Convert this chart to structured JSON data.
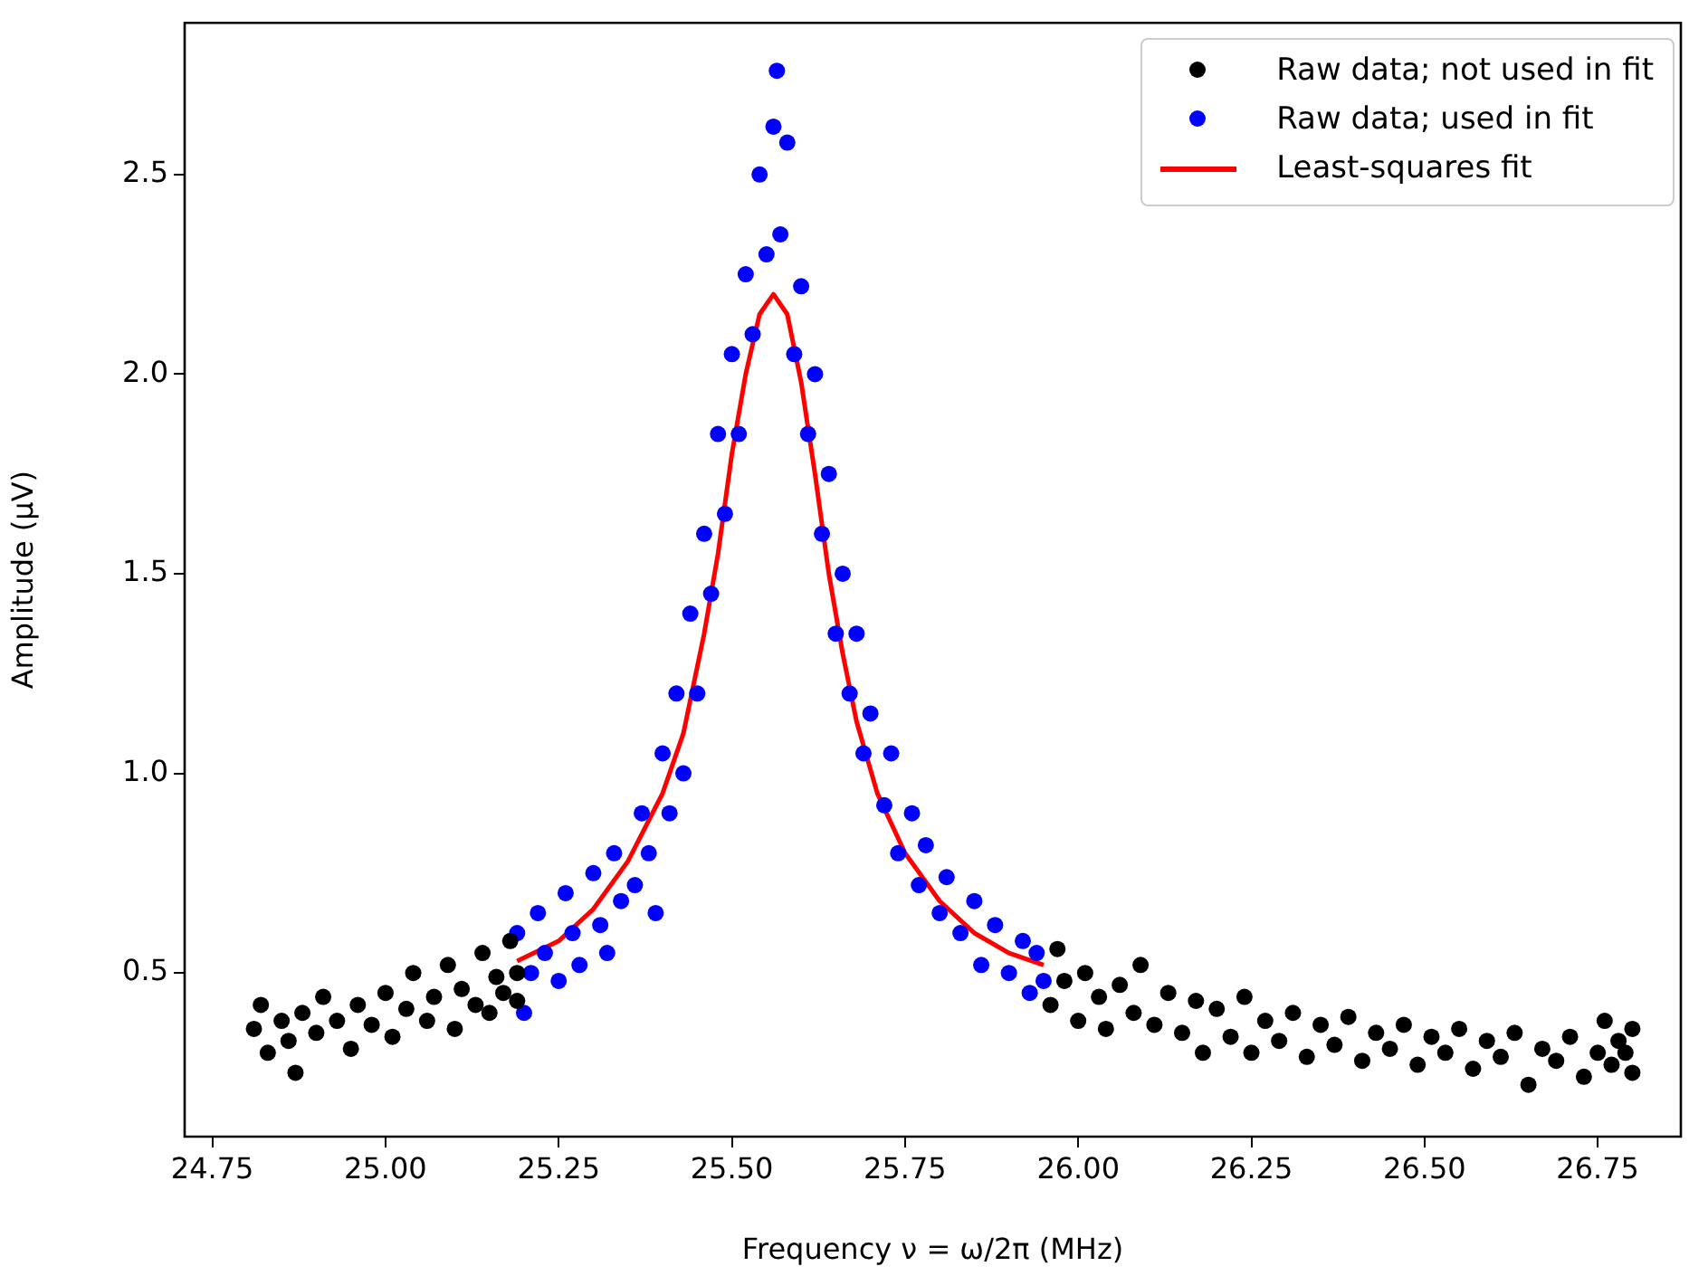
{
  "chart_data": {
    "type": "scatter",
    "xlabel": "Frequency ν = ω/2π (MHz)",
    "ylabel": "Amplitude (μV)",
    "xlim": [
      24.71,
      26.87
    ],
    "ylim": [
      0.09,
      2.88
    ],
    "xticks": [
      24.75,
      {
        "value": 25,
        "label": "25.00"
      },
      25.25,
      {
        "value": 25.5,
        "label": "25.50"
      },
      25.75,
      {
        "value": 26,
        "label": "26.00"
      },
      26.25,
      {
        "value": 26.5,
        "label": "26.50"
      },
      26.75
    ],
    "yticks": [
      0.5,
      {
        "value": 1,
        "label": "1.0"
      },
      1.5,
      {
        "value": 2,
        "label": "2.0"
      },
      2.5
    ],
    "grid": false,
    "legend": "top right",
    "marker": "circle",
    "series": [
      {
        "name": "Raw data; not used in fit",
        "color": "#000000",
        "x": [
          24.81,
          24.82,
          24.83,
          24.85,
          24.86,
          24.87,
          24.88,
          24.9,
          24.91,
          24.93,
          24.95,
          24.96,
          24.98,
          25.0,
          25.01,
          25.03,
          25.04,
          25.06,
          25.07,
          25.09,
          25.1,
          25.11,
          25.13,
          25.14,
          25.15,
          25.16,
          25.17,
          25.18,
          25.19,
          25.19,
          25.96,
          25.97,
          25.98,
          26.0,
          26.01,
          26.03,
          26.04,
          26.06,
          26.08,
          26.09,
          26.11,
          26.13,
          26.15,
          26.17,
          26.18,
          26.2,
          26.22,
          26.24,
          26.25,
          26.27,
          26.29,
          26.31,
          26.33,
          26.35,
          26.37,
          26.39,
          26.41,
          26.43,
          26.45,
          26.47,
          26.49,
          26.51,
          26.53,
          26.55,
          26.57,
          26.59,
          26.61,
          26.63,
          26.65,
          26.67,
          26.69,
          26.71,
          26.73,
          26.75,
          26.76,
          26.77,
          26.78,
          26.79,
          26.8,
          26.8
        ],
        "values": [
          0.36,
          0.42,
          0.3,
          0.38,
          0.33,
          0.25,
          0.4,
          0.35,
          0.44,
          0.38,
          0.31,
          0.42,
          0.37,
          0.45,
          0.34,
          0.41,
          0.5,
          0.38,
          0.44,
          0.52,
          0.36,
          0.46,
          0.42,
          0.55,
          0.4,
          0.49,
          0.45,
          0.58,
          0.5,
          0.43,
          0.42,
          0.56,
          0.48,
          0.38,
          0.5,
          0.44,
          0.36,
          0.47,
          0.4,
          0.52,
          0.37,
          0.45,
          0.35,
          0.43,
          0.3,
          0.41,
          0.34,
          0.44,
          0.3,
          0.38,
          0.33,
          0.4,
          0.29,
          0.37,
          0.32,
          0.39,
          0.28,
          0.35,
          0.31,
          0.37,
          0.27,
          0.34,
          0.3,
          0.36,
          0.26,
          0.33,
          0.29,
          0.35,
          0.22,
          0.31,
          0.28,
          0.34,
          0.24,
          0.3,
          0.38,
          0.27,
          0.33,
          0.3,
          0.36,
          0.25
        ]
      },
      {
        "name": "Raw data; used in fit",
        "color": "#0000ff",
        "x": [
          25.19,
          25.2,
          25.21,
          25.22,
          25.23,
          25.25,
          25.26,
          25.27,
          25.28,
          25.3,
          25.31,
          25.32,
          25.33,
          25.34,
          25.36,
          25.37,
          25.38,
          25.39,
          25.4,
          25.41,
          25.42,
          25.43,
          25.44,
          25.45,
          25.46,
          25.47,
          25.48,
          25.49,
          25.5,
          25.51,
          25.52,
          25.53,
          25.54,
          25.55,
          25.56,
          25.565,
          25.57,
          25.58,
          25.59,
          25.6,
          25.61,
          25.62,
          25.63,
          25.64,
          25.65,
          25.66,
          25.67,
          25.68,
          25.69,
          25.7,
          25.72,
          25.73,
          25.74,
          25.76,
          25.77,
          25.78,
          25.8,
          25.81,
          25.83,
          25.85,
          25.86,
          25.88,
          25.9,
          25.92,
          25.93,
          25.94,
          25.95
        ],
        "values": [
          0.6,
          0.4,
          0.5,
          0.65,
          0.55,
          0.48,
          0.7,
          0.6,
          0.52,
          0.75,
          0.62,
          0.55,
          0.8,
          0.68,
          0.72,
          0.9,
          0.8,
          0.65,
          1.05,
          0.9,
          1.2,
          1.0,
          1.4,
          1.2,
          1.6,
          1.45,
          1.85,
          1.65,
          2.05,
          1.85,
          2.25,
          2.1,
          2.5,
          2.3,
          2.62,
          2.76,
          2.35,
          2.58,
          2.05,
          2.22,
          1.85,
          2.0,
          1.6,
          1.75,
          1.35,
          1.5,
          1.2,
          1.35,
          1.05,
          1.15,
          0.92,
          1.05,
          0.8,
          0.9,
          0.72,
          0.82,
          0.65,
          0.74,
          0.6,
          0.68,
          0.52,
          0.62,
          0.5,
          0.58,
          0.45,
          0.55,
          0.48
        ]
      },
      {
        "name": "Least-squares fit",
        "type": "line",
        "color": "#ff0000",
        "marker": "none",
        "line_style": "solid",
        "x": [
          25.19,
          25.25,
          25.3,
          25.35,
          25.4,
          25.43,
          25.46,
          25.48,
          25.5,
          25.52,
          25.54,
          25.56,
          25.58,
          25.6,
          25.62,
          25.64,
          25.66,
          25.68,
          25.71,
          25.75,
          25.8,
          25.85,
          25.9,
          25.95
        ],
        "values": [
          0.53,
          0.58,
          0.66,
          0.78,
          0.95,
          1.1,
          1.35,
          1.55,
          1.8,
          2.0,
          2.15,
          2.2,
          2.15,
          1.98,
          1.75,
          1.5,
          1.3,
          1.13,
          0.95,
          0.8,
          0.68,
          0.6,
          0.55,
          0.52
        ]
      }
    ]
  }
}
